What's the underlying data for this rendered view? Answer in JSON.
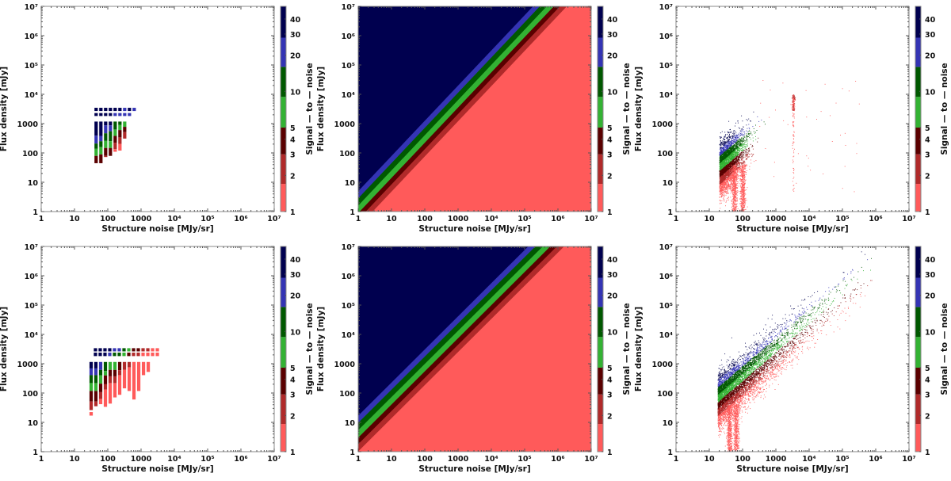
{
  "labels": {
    "xlabel": "Structure noise [MJy/sr]",
    "ylabel": "Flux density [mJy]",
    "cblabel": "Signal — to — noise"
  },
  "axis_ticks": [
    "1",
    "10",
    "100",
    "1000",
    "10⁴",
    "10⁵",
    "10⁶",
    "10⁷"
  ],
  "colorbar": {
    "ticks": [
      {
        "value": 1,
        "label": "1"
      },
      {
        "value": 2,
        "label": "2"
      },
      {
        "value": 3,
        "label": "3"
      },
      {
        "value": 4,
        "label": "4"
      },
      {
        "value": 5,
        "label": "5"
      },
      {
        "value": 10,
        "label": "10"
      },
      {
        "value": 20,
        "label": "20"
      },
      {
        "value": 30,
        "label": "30"
      },
      {
        "value": 40,
        "label": "40"
      }
    ],
    "range": [
      1,
      51
    ],
    "bands": [
      {
        "from": 1,
        "to": 1.7,
        "color": "#ff5a5a"
      },
      {
        "from": 1.7,
        "to": 3,
        "color": "#b02a2a"
      },
      {
        "from": 3,
        "to": 5,
        "color": "#5a0000"
      },
      {
        "from": 5,
        "to": 9,
        "color": "#33b233"
      },
      {
        "from": 9,
        "to": 16,
        "color": "#005800"
      },
      {
        "from": 16,
        "to": 28,
        "color": "#3434b4"
      },
      {
        "from": 28,
        "to": 51,
        "color": "#00004f"
      }
    ]
  },
  "chart_data": [
    {
      "panel": "row1-left",
      "type": "heatmap",
      "xscale": "log",
      "yscale": "log",
      "xlim": [
        1,
        10000000
      ],
      "ylim": [
        1,
        10000000
      ],
      "xlabel": "Structure noise [MJy/sr]",
      "ylabel": "Flux density [mJy]",
      "note": "binned SNR class (0=1-1.7 … 6=28-51); columns given as log10 flux segments",
      "x_log10_start": 1.6,
      "x_log10_step": 0.143,
      "columns": [
        [
          [
            3.07,
            2.59,
            6
          ],
          [
            2.59,
            2.32,
            5
          ],
          [
            2.32,
            2.14,
            4
          ],
          [
            2.14,
            1.9,
            3
          ],
          [
            1.9,
            1.65,
            2
          ]
        ],
        [
          [
            3.07,
            2.58,
            6
          ],
          [
            2.58,
            2.4,
            5
          ],
          [
            2.4,
            2.2,
            4
          ],
          [
            2.2,
            1.95,
            3
          ],
          [
            1.95,
            1.65,
            2
          ]
        ],
        [
          [
            3.07,
            2.94,
            6
          ],
          [
            2.94,
            2.67,
            5
          ],
          [
            2.67,
            2.41,
            4
          ],
          [
            2.41,
            2.17,
            3
          ],
          [
            2.17,
            1.9,
            2
          ],
          [
            1.9,
            1.86,
            1
          ]
        ],
        [
          [
            3.07,
            2.94,
            6
          ],
          [
            2.94,
            2.74,
            5
          ],
          [
            2.74,
            2.4,
            4
          ],
          [
            2.4,
            2.17,
            3
          ],
          [
            2.17,
            1.9,
            2
          ]
        ],
        [
          [
            3.07,
            2.8,
            4
          ],
          [
            2.8,
            2.58,
            3
          ],
          [
            2.58,
            2.35,
            2
          ],
          [
            2.35,
            2.13,
            1
          ],
          [
            2.13,
            2.04,
            0
          ]
        ],
        [
          [
            3.07,
            2.96,
            4
          ],
          [
            2.96,
            2.78,
            3
          ],
          [
            2.78,
            2.53,
            2
          ],
          [
            2.53,
            2.31,
            1
          ],
          [
            2.31,
            2.08,
            0
          ]
        ],
        [
          [
            3.07,
            2.89,
            3
          ],
          [
            2.89,
            2.71,
            2
          ],
          [
            2.71,
            2.49,
            1
          ]
        ]
      ],
      "squares": [
        {
          "log10_flux": [
            3.54,
            3.43
          ],
          "classes": [
            6,
            6,
            6,
            6,
            6,
            6,
            5,
            6,
            5
          ]
        },
        {
          "log10_flux": [
            3.36,
            3.26
          ],
          "classes": [
            6,
            6,
            6,
            6,
            5,
            5,
            5,
            5
          ]
        }
      ]
    },
    {
      "panel": "row1-middle",
      "type": "heatmap",
      "xscale": "log",
      "yscale": "log",
      "xlim": [
        1,
        10000000
      ],
      "ylim": [
        1,
        10000000
      ],
      "xlabel": "Structure noise [MJy/sr]",
      "ylabel": "Flux density [mJy]",
      "model": {
        "log10_c": 0.75,
        "slope": 1.2,
        "relation": "log10(F) = log10(SNR) - log10_c + slope*log10(N)"
      }
    },
    {
      "panel": "row1-right",
      "type": "scatter",
      "xscale": "log",
      "yscale": "log",
      "xlim": [
        1,
        10000000
      ],
      "ylim": [
        1,
        10000000
      ],
      "xlabel": "Structure noise [MJy/sr]",
      "ylabel": "Flux density [mJy]",
      "distribution": {
        "noise_log10_min": 1.3,
        "noise_log10_spread": 0.35,
        "ridge_log10_flux_at_min": 1.3,
        "slope": 0.98,
        "streak_log10_noise": 3.52,
        "spikes_log10_noise": [
          1.75,
          2.0
        ]
      }
    },
    {
      "panel": "row2-left",
      "type": "heatmap",
      "xscale": "log",
      "yscale": "log",
      "xlim": [
        1,
        10000000
      ],
      "ylim": [
        1,
        10000000
      ],
      "xlabel": "Structure noise [MJy/sr]",
      "ylabel": "Flux density [mJy]",
      "x_log10_start": 1.45,
      "x_log10_step": 0.143,
      "columns": [
        [
          [
            3.06,
            2.84,
            6
          ],
          [
            2.84,
            2.61,
            5
          ],
          [
            2.61,
            2.34,
            4
          ],
          [
            2.34,
            2.07,
            3
          ],
          [
            2.07,
            1.71,
            2
          ],
          [
            1.71,
            1.42,
            1
          ],
          [
            1.35,
            1.23,
            0
          ]
        ],
        [
          [
            3.06,
            2.84,
            6
          ],
          [
            2.84,
            2.61,
            5
          ],
          [
            2.61,
            2.34,
            4
          ],
          [
            2.34,
            2.07,
            3
          ],
          [
            2.07,
            1.71,
            2
          ],
          [
            1.71,
            1.55,
            1
          ]
        ],
        [
          [
            3.06,
            2.79,
            5
          ],
          [
            2.79,
            2.6,
            4
          ],
          [
            2.6,
            2.32,
            3
          ],
          [
            2.32,
            2.03,
            2
          ],
          [
            2.03,
            1.8,
            1
          ],
          [
            1.8,
            1.62,
            0
          ]
        ],
        [
          [
            3.06,
            2.75,
            4
          ],
          [
            2.75,
            2.6,
            3
          ],
          [
            2.6,
            2.3,
            2
          ],
          [
            2.3,
            2.12,
            1
          ],
          [
            2.12,
            1.53,
            0
          ]
        ],
        [
          [
            3.06,
            2.79,
            3
          ],
          [
            2.79,
            2.57,
            2
          ],
          [
            2.57,
            2.34,
            1
          ],
          [
            2.34,
            1.64,
            0
          ]
        ],
        [
          [
            3.06,
            2.79,
            3
          ],
          [
            2.79,
            2.57,
            2
          ],
          [
            2.57,
            2.34,
            1
          ],
          [
            2.34,
            1.85,
            0
          ]
        ],
        [
          [
            3.06,
            2.78,
            2
          ],
          [
            2.78,
            2.61,
            1
          ],
          [
            2.61,
            1.94,
            0
          ]
        ],
        [
          [
            3.06,
            2.79,
            1
          ],
          [
            2.79,
            2.16,
            0
          ]
        ],
        [
          [
            3.06,
            2.88,
            1
          ],
          [
            2.88,
            2.07,
            0
          ]
        ],
        [
          [
            3.06,
            1.78,
            0
          ]
        ],
        [
          [
            3.06,
            2.07,
            0
          ]
        ],
        [
          [
            3.06,
            2.61,
            0
          ]
        ],
        [
          [
            3.06,
            2.72,
            0
          ]
        ]
      ],
      "squares": [
        {
          "x_log10_start": 1.58,
          "log10_flux": [
            3.53,
            3.42
          ],
          "classes": [
            6,
            6,
            6,
            6,
            5,
            5,
            4,
            3,
            2,
            2,
            1,
            1,
            0,
            0
          ]
        },
        {
          "x_log10_start": 1.58,
          "log10_flux": [
            3.38,
            3.26
          ],
          "classes": [
            6,
            6,
            6,
            5,
            4,
            4,
            3,
            2,
            1,
            1,
            0,
            0,
            0,
            0
          ]
        }
      ]
    },
    {
      "panel": "row2-middle",
      "type": "heatmap",
      "xscale": "log",
      "yscale": "log",
      "xlim": [
        1,
        10000000
      ],
      "ylim": [
        1,
        10000000
      ],
      "xlabel": "Structure noise [MJy/sr]",
      "ylabel": "Flux density [mJy]",
      "model": {
        "log10_c": 0.22,
        "slope": 1.13,
        "relation": "log10(F) = log10(SNR) - log10_c + slope*log10(N)"
      }
    },
    {
      "panel": "row2-right",
      "type": "scatter",
      "xscale": "log",
      "yscale": "log",
      "xlim": [
        1,
        10000000
      ],
      "ylim": [
        1,
        10000000
      ],
      "xlabel": "Structure noise [MJy/sr]",
      "ylabel": "Flux density [mJy]",
      "distribution": {
        "noise_log10_min": 1.25,
        "noise_log10_max": 5.9,
        "ridge_log10_flux_at_min": 1.6,
        "slope": 0.97,
        "spikes_log10_noise": [
          1.6,
          1.8
        ]
      }
    }
  ]
}
